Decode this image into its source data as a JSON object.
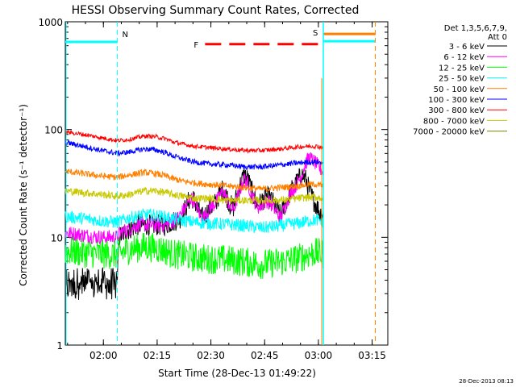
{
  "chart_data": {
    "type": "line",
    "title": "HESSI Observing Summary Count Rates, Corrected",
    "xlabel": "Start Time (28-Dec-13 01:49:22)",
    "ylabel": "Corrected Count Rate (s⁻¹ detector⁻¹)",
    "yscale": "log",
    "ylim": [
      1,
      1000
    ],
    "xlim_minutes": [
      0,
      90
    ],
    "x_tick_labels": [
      "02:00",
      "02:15",
      "02:30",
      "02:45",
      "03:00",
      "03:15"
    ],
    "x_tick_minutes": [
      10.63,
      25.63,
      40.63,
      55.63,
      70.63,
      85.63
    ],
    "y_tick_labels": [
      "1",
      "10",
      "100",
      "1000"
    ],
    "y_tick_values": [
      1,
      10,
      100,
      1000
    ],
    "legend_header": [
      "Det 1,3,5,6,7,9,",
      "Att 0"
    ],
    "legend_position": "right",
    "timestamp": "28-Dec-2013 08:13",
    "flags": {
      "N": {
        "label": "N",
        "color": "#00ffff",
        "end_min": 14.5,
        "level": 650
      },
      "F": {
        "label": "F",
        "color": "#ff0000",
        "start_min": 39,
        "end_min": 70.5,
        "level": 620
      },
      "S": {
        "label": "S",
        "color": "#ff8000",
        "start_min": 72,
        "end_min": 86.5,
        "level": 770
      },
      "S2": {
        "color": "#00ffff",
        "start_min": 72,
        "end_min": 86.5,
        "level": 660
      }
    },
    "vertical_lines_min": [
      14.5,
      72,
      86.5
    ],
    "series": [
      {
        "name": "3 - 6 keV",
        "color": "#000000",
        "x": [
          0,
          14.5,
          15,
          18,
          20,
          25,
          28,
          30,
          32,
          33,
          34,
          35,
          36,
          37,
          38,
          39,
          40,
          42,
          43,
          44,
          45,
          46,
          47,
          48,
          49,
          50,
          51,
          52,
          53,
          54,
          55,
          56,
          57,
          58,
          59,
          60,
          61,
          62,
          63,
          64,
          65,
          66,
          67,
          68,
          69,
          70,
          71,
          72
        ],
        "y": [
          4.0,
          3.2,
          10,
          12,
          13,
          13,
          13,
          14,
          15,
          17,
          20,
          24,
          22,
          18,
          15,
          16,
          18,
          21,
          25,
          28,
          24,
          20,
          19,
          25,
          32,
          38,
          34,
          27,
          22,
          20,
          22,
          24,
          23,
          21,
          18,
          16,
          19,
          23,
          27,
          30,
          34,
          38,
          35,
          28,
          23,
          20,
          17,
          16
        ]
      },
      {
        "name": "6 - 12 keV",
        "color": "#ff00ff",
        "x": [
          0,
          5,
          10,
          14.5,
          15,
          18,
          20,
          25,
          28,
          30,
          32,
          33,
          34,
          35,
          36,
          37,
          38,
          39,
          40,
          42,
          43,
          44,
          45,
          46,
          47,
          48,
          49,
          50,
          51,
          52,
          53,
          54,
          55,
          56,
          57,
          58,
          59,
          60,
          61,
          62,
          63,
          64,
          65,
          66,
          67,
          68,
          69,
          70,
          71,
          72
        ],
        "y": [
          11,
          10.5,
          10,
          10,
          11,
          12,
          13,
          13,
          13,
          14,
          16,
          18,
          20,
          23,
          22,
          18,
          15,
          16,
          18,
          21,
          24,
          27,
          23,
          19,
          18,
          23,
          29,
          35,
          31,
          25,
          21,
          19,
          20,
          22,
          21,
          19,
          17,
          15,
          18,
          22,
          26,
          29,
          33,
          38,
          48,
          55,
          52,
          48,
          44,
          40
        ]
      },
      {
        "name": "12 - 25 keV",
        "color": "#00ff00",
        "x": [
          0,
          5,
          10,
          14.5,
          18,
          22,
          25,
          28,
          30,
          33,
          36,
          40,
          45,
          50,
          55,
          60,
          65,
          68,
          70,
          72
        ],
        "y": [
          7.5,
          7.2,
          7.0,
          6.9,
          7.8,
          8.2,
          8.0,
          7.5,
          7.0,
          6.8,
          6.5,
          6.3,
          6.2,
          5.9,
          5.6,
          5.9,
          6.4,
          7.0,
          7.2,
          7.0
        ]
      },
      {
        "name": "25 - 50 keV",
        "color": "#00ffff",
        "x": [
          0,
          5,
          10,
          14.5,
          18,
          22,
          25,
          28,
          30,
          33,
          36,
          40,
          45,
          50,
          55,
          60,
          65,
          68,
          70,
          72
        ],
        "y": [
          15.5,
          15,
          14.2,
          13.8,
          15.2,
          16.2,
          16.0,
          15.4,
          14.8,
          14.3,
          13.8,
          13.5,
          13.2,
          12.8,
          12.2,
          12.8,
          13.5,
          14.2,
          14.5,
          14
        ]
      },
      {
        "name": "50 - 100 keV",
        "color": "#ff8000",
        "x": [
          0,
          5,
          10,
          14.5,
          18,
          22,
          25,
          28,
          30,
          33,
          36,
          40,
          45,
          50,
          55,
          60,
          65,
          68,
          70,
          72
        ],
        "y": [
          41,
          39,
          37,
          36,
          38,
          40,
          39,
          37,
          35,
          33,
          32,
          31,
          30,
          29,
          28,
          29,
          30,
          31,
          31,
          30
        ]
      },
      {
        "name": "100 - 300 keV",
        "color": "#0000ff",
        "x": [
          0,
          5,
          10,
          14.5,
          18,
          22,
          25,
          28,
          30,
          33,
          36,
          40,
          45,
          50,
          55,
          60,
          65,
          68,
          70,
          72
        ],
        "y": [
          76,
          70,
          64,
          60,
          62,
          66,
          65,
          61,
          57,
          53,
          50,
          48,
          47,
          45,
          45,
          47,
          49,
          50,
          50,
          49
        ]
      },
      {
        "name": "300 - 800 keV",
        "color": "#ff0000",
        "x": [
          0,
          5,
          10,
          14.5,
          18,
          22,
          25,
          28,
          30,
          33,
          36,
          40,
          45,
          50,
          55,
          60,
          65,
          68,
          70,
          72
        ],
        "y": [
          95,
          90,
          84,
          79,
          81,
          87,
          86,
          82,
          77,
          73,
          70,
          68,
          66,
          64,
          64,
          66,
          69,
          70,
          70,
          68
        ]
      },
      {
        "name": "800 - 7000 keV",
        "color": "#c8c800",
        "x": [
          0,
          5,
          10,
          14.5,
          18,
          22,
          25,
          28,
          30,
          33,
          36,
          40,
          45,
          50,
          55,
          60,
          65,
          68,
          70,
          72
        ],
        "y": [
          27,
          26,
          25,
          24,
          25,
          27,
          27,
          26,
          25,
          24,
          23,
          23,
          22,
          22,
          22,
          22,
          23,
          23.5,
          23.5,
          23
        ]
      },
      {
        "name": "7000 - 20000 keV",
        "color": "#808000",
        "x": [],
        "y": []
      }
    ]
  }
}
